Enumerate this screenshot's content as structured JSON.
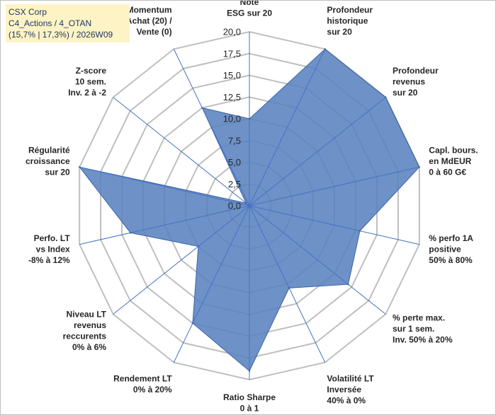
{
  "header": {
    "line1": "CSX Corp",
    "line2": "C4_Actions / 4_OTAN",
    "line3": "(15,7% | 17,3%) / 2026W09"
  },
  "colors": {
    "fill": "#5a82bf",
    "stroke": "#3a64a8",
    "grid": "#bfbfbf",
    "spoke": "#4472c4",
    "title_bg": "#fdf3c4",
    "text": "#262626"
  },
  "chart_data": {
    "type": "radar",
    "rlim": [
      0,
      20
    ],
    "tick_values": [
      0,
      2.5,
      5,
      7.5,
      10,
      12.5,
      15,
      17.5,
      20
    ],
    "tick_labels": [
      "0,0",
      "2,5",
      "5,0",
      "7,5",
      "10,0",
      "12,5",
      "15,0",
      "17,5",
      "20,0"
    ],
    "axes": [
      {
        "label": [
          "Note",
          "ESG sur 20"
        ],
        "value": 10
      },
      {
        "label": [
          "Profondeur",
          "historique",
          "sur 20"
        ],
        "value": 20
      },
      {
        "label": [
          "Profondeur",
          "revenus",
          "sur 20"
        ],
        "value": 20
      },
      {
        "label": [
          "Capl. bours.",
          "en MdEUR",
          "0 à 60 G€"
        ],
        "value": 20
      },
      {
        "label": [
          "% perfo 1A",
          "positive",
          "50% à 80%"
        ],
        "value": 13
      },
      {
        "label": [
          "% perte max.",
          "sur 1 sem.",
          "Inv. 50% à 20%"
        ],
        "value": 14.5
      },
      {
        "label": [
          "Volatilité LT",
          "Inversée",
          "40% à 0%"
        ],
        "value": 10.5
      },
      {
        "label": [
          "Ratio Sharpe",
          "0 à 1"
        ],
        "value": 19
      },
      {
        "label": [
          "Rendement LT",
          "0% à 20%"
        ],
        "value": 15
      },
      {
        "label": [
          "Niveau LT",
          "revenus",
          "reccurents",
          "0% à 6%"
        ],
        "value": 7.5
      },
      {
        "label": [
          "Perfo. LT",
          "vs Index",
          "-8% à 12%"
        ],
        "value": 14
      },
      {
        "label": [
          "Régularité",
          "croissance",
          "sur 20"
        ],
        "value": 20
      },
      {
        "label": [
          "Z-score",
          "10 sem.",
          "Inv. 2 à -2"
        ],
        "value": 0.5
      },
      {
        "label": [
          "Momentum",
          "Achat (20) /",
          "Vente (0)"
        ],
        "value": 12.5
      }
    ]
  }
}
